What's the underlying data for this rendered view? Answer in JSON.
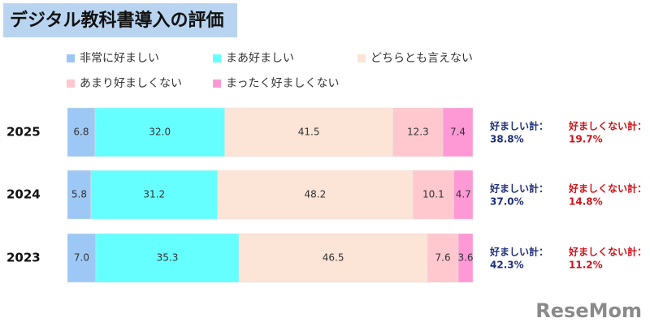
{
  "chart_data": {
    "type": "stacked-bar-horizontal",
    "title": "デジタル教科書導入の評価",
    "categories": [
      "2025",
      "2024",
      "2023"
    ],
    "xlim": [
      0,
      100
    ],
    "series": [
      {
        "name": "非常に好ましい",
        "color": "#9dc8f5",
        "values": [
          6.8,
          5.8,
          7.0
        ],
        "value_labels": [
          "6.8",
          "5.8",
          "7.0"
        ]
      },
      {
        "name": "まあ好ましい",
        "color": "#66ffff",
        "values": [
          32.0,
          31.2,
          35.3
        ],
        "value_labels": [
          "32.0",
          "31.2",
          "35.3"
        ]
      },
      {
        "name": "どちらとも言えない",
        "color": "#fce4d6",
        "values": [
          41.5,
          48.2,
          46.5
        ],
        "value_labels": [
          "41.5",
          "48.2",
          "46.5"
        ]
      },
      {
        "name": "あまり好ましくない",
        "color": "#ffc8cf",
        "values": [
          12.3,
          10.1,
          7.6
        ],
        "value_labels": [
          "12.3",
          "10.1",
          "7.6"
        ]
      },
      {
        "name": "まったく好ましくない",
        "color": "#ff99d6",
        "values": [
          7.4,
          4.7,
          3.6
        ],
        "value_labels": [
          "7.4",
          "4.7",
          "3.6"
        ]
      }
    ],
    "positive_total_label": "好ましい計：",
    "positive_totals": [
      "38.8%",
      "37.0%",
      "42.3%"
    ],
    "negative_total_label": "好ましくない計：",
    "negative_totals": [
      "19.7%",
      "14.8%",
      "11.2%"
    ],
    "watermark": "ReseMom"
  }
}
